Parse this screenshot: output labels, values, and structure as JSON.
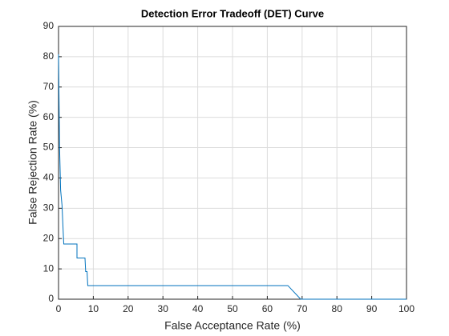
{
  "chart_data": {
    "type": "line",
    "title": "Detection Error Tradeoff (DET) Curve",
    "x_label": "False Acceptance Rate (%)",
    "y_label": "False Rejection Rate (%)",
    "x": [
      0,
      0.3,
      0.6,
      1,
      1.5,
      5.3,
      5.3,
      7.6,
      7.8,
      8.2,
      8.4,
      65.9,
      69.6,
      100
    ],
    "series": [
      {
        "color": "#0072bd",
        "values": [
          80.8,
          50,
          36,
          31,
          18.2,
          18.2,
          13.6,
          13.6,
          9.1,
          9.1,
          4.5,
          4.5,
          0,
          0
        ]
      }
    ],
    "xlim": [
      0,
      100
    ],
    "xticks": [
      0,
      10,
      20,
      30,
      40,
      50,
      60,
      70,
      80,
      90,
      100
    ],
    "ylim": [
      0,
      90
    ],
    "yticks": [
      0,
      10,
      20,
      30,
      40,
      50,
      60,
      70,
      80,
      90
    ],
    "grid": true
  }
}
